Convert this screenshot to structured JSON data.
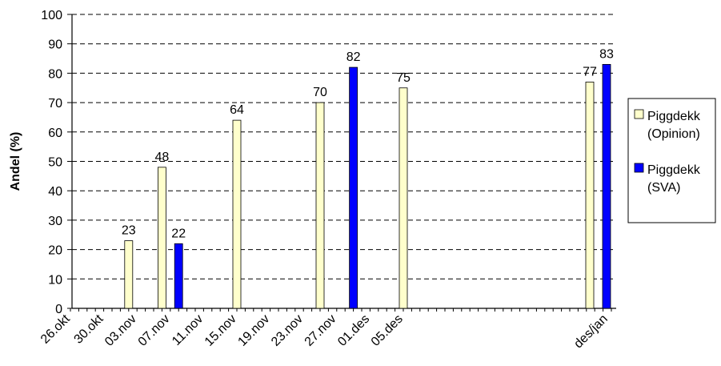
{
  "chart_data": {
    "type": "bar",
    "ylabel": "Andel (%)",
    "xlabel": "",
    "title": "",
    "ylim": [
      0,
      100
    ],
    "y_ticks": [
      0,
      10,
      20,
      30,
      40,
      50,
      60,
      70,
      80,
      90,
      100
    ],
    "grid": "horizontal dashed",
    "legend_position": "right",
    "x_tick_labels": [
      "26.okt",
      "30.okt",
      "03.nov",
      "07.nov",
      "11.nov",
      "15.nov",
      "19.nov",
      "23.nov",
      "27.nov",
      "01.des",
      "05.des",
      "des/jan"
    ],
    "series": [
      {
        "name": "Piggdekk (Opinion)",
        "legend_lines": [
          "Piggdekk",
          "(Opinion)"
        ],
        "color": "#ffffcc",
        "points": [
          {
            "x": "02.nov",
            "y": 23
          },
          {
            "x": "06.nov",
            "y": 48
          },
          {
            "x": "15.nov",
            "y": 64
          },
          {
            "x": "25.nov",
            "y": 70
          },
          {
            "x": "05.des",
            "y": 75
          },
          {
            "x": "des/jan",
            "y": 77
          }
        ]
      },
      {
        "name": "Piggdekk (SVA)",
        "legend_lines": [
          "Piggdekk",
          "(SVA)"
        ],
        "color": "#0000ff",
        "points": [
          {
            "x": "08.nov",
            "y": 22
          },
          {
            "x": "29.nov",
            "y": 82
          },
          {
            "x": "des/jan",
            "y": 83
          }
        ]
      }
    ]
  }
}
